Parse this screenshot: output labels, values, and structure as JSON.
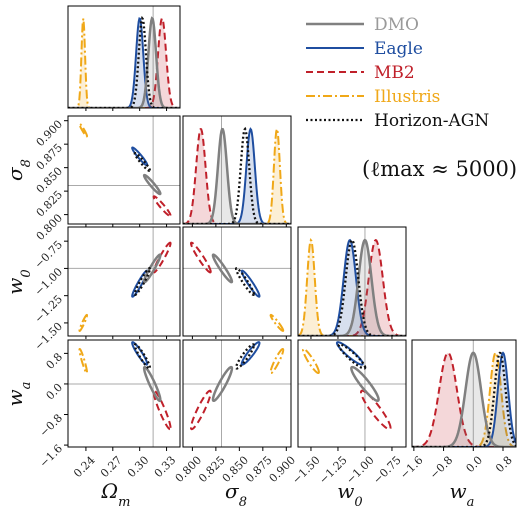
{
  "chart_data": {
    "type": "corner",
    "annotation": "(ℓmax ≈ 5000)",
    "parameters": [
      {
        "key": "Om",
        "label": "Ωm",
        "fiducial": 0.315,
        "range": [
          0.22,
          0.345
        ],
        "ticks": [
          "0.24",
          "0.27",
          "0.30",
          "0.33"
        ],
        "tick_values": [
          0.24,
          0.27,
          0.3,
          0.33
        ]
      },
      {
        "key": "s8",
        "label": "σ8",
        "fiducial": 0.831,
        "range": [
          0.79,
          0.905
        ],
        "ticks": [
          "0.800",
          "0.825",
          "0.850",
          "0.875",
          "0.900"
        ],
        "tick_values": [
          0.8,
          0.825,
          0.85,
          0.875,
          0.9
        ]
      },
      {
        "key": "w0",
        "label": "w0",
        "fiducial": -1.0,
        "range": [
          -1.62,
          -0.62
        ],
        "ticks": [
          "−1.50",
          "−1.25",
          "−1.00",
          "−0.75"
        ],
        "tick_values": [
          -1.5,
          -1.25,
          -1.0,
          -0.75
        ]
      },
      {
        "key": "wa",
        "label": "wa",
        "fiducial": 0.0,
        "range": [
          -1.65,
          1.15
        ],
        "ticks": [
          "−1.6",
          "−0.8",
          "0.0",
          "0.8"
        ],
        "tick_values": [
          -1.6,
          -0.8,
          0.0,
          0.8
        ]
      }
    ],
    "series": [
      {
        "name": "DMO",
        "color": "#808080",
        "dash": "solid",
        "width": 2.5,
        "text_color": "#9a9a9a",
        "mean": [
          0.314,
          0.832,
          -1.0,
          0.0
        ],
        "sd": [
          0.0043,
          0.0048,
          0.06,
          0.21
        ]
      },
      {
        "name": "Eagle",
        "color": "#1f4ea0",
        "dash": "solid",
        "width": 2,
        "text_color": "#1f4ea0",
        "mean": [
          0.3,
          0.862,
          -1.14,
          0.8
        ],
        "sd": [
          0.004,
          0.0045,
          0.057,
          0.14
        ]
      },
      {
        "name": "MB2",
        "color": "#c0202a",
        "dash": "7,4",
        "width": 2,
        "text_color": "#c0202a",
        "mean": [
          0.325,
          0.809,
          -0.9,
          -0.68
        ],
        "sd": [
          0.0045,
          0.005,
          0.065,
          0.24
        ]
      },
      {
        "name": "Illustris",
        "color": "#f0a818",
        "dash": "9,3,2,3",
        "width": 2,
        "text_color": "#f0a818",
        "mean": [
          0.237,
          0.89,
          -1.5,
          0.6
        ],
        "sd": [
          0.002,
          0.0032,
          0.035,
          0.15
        ]
      },
      {
        "name": "Horizon-AGN",
        "color": "#111111",
        "dash": "2,2.5",
        "width": 2.3,
        "text_color": "#111111",
        "mean": [
          0.303,
          0.856,
          -1.12,
          0.72
        ],
        "sd": [
          0.004,
          0.0045,
          0.058,
          0.15
        ]
      }
    ],
    "correlations": {
      "Om-s8": -0.95,
      "Om-w0": 0.95,
      "Om-wa": -0.93,
      "s8-w0": -0.95,
      "s8-wa": 0.92,
      "w0-wa": -0.92
    }
  }
}
